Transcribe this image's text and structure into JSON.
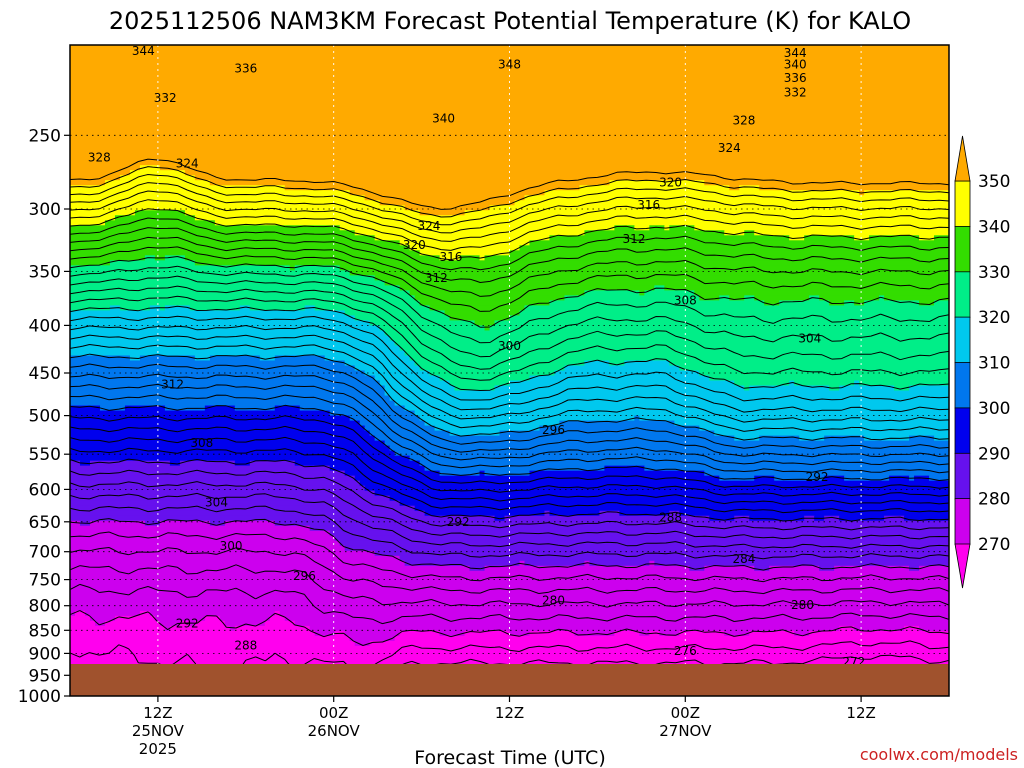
{
  "title": "2025112506 NAM3KM Forecast Potential Temperature (K) for KALO",
  "credit": "coolwx.com/models",
  "chart_data": {
    "type": "heatmap",
    "title": "2025112506 NAM3KM Forecast Potential Temperature (K) for KALO",
    "xlabel": "Forecast Time (UTC)",
    "ylabel": "",
    "x_range_hours": [
      0,
      60
    ],
    "y_scale": "log-pressure",
    "ylim": [
      1000,
      200
    ],
    "y_ticks": [
      250,
      300,
      350,
      400,
      450,
      500,
      550,
      600,
      650,
      700,
      750,
      800,
      850,
      900,
      950,
      1000
    ],
    "x_ticks": [
      {
        "hour": 6,
        "lines": [
          "12Z",
          "25NOV",
          "2025"
        ]
      },
      {
        "hour": 18,
        "lines": [
          "00Z",
          "26NOV"
        ]
      },
      {
        "hour": 30,
        "lines": [
          "12Z"
        ]
      },
      {
        "hour": 42,
        "lines": [
          "00Z",
          "27NOV"
        ]
      },
      {
        "hour": 54,
        "lines": [
          "12Z"
        ]
      }
    ],
    "grid": true,
    "contour_interval": 2,
    "contour_labels": [
      {
        "value": 344,
        "hour": 5,
        "p": 203
      },
      {
        "value": 336,
        "hour": 12,
        "p": 212
      },
      {
        "value": 332,
        "hour": 6.5,
        "p": 228
      },
      {
        "value": 328,
        "hour": 2,
        "p": 264
      },
      {
        "value": 324,
        "hour": 8,
        "p": 268
      },
      {
        "value": 340,
        "hour": 25.5,
        "p": 240
      },
      {
        "value": 348,
        "hour": 30,
        "p": 210
      },
      {
        "value": 344,
        "hour": 49.5,
        "p": 204
      },
      {
        "value": 340,
        "hour": 49.5,
        "p": 210
      },
      {
        "value": 336,
        "hour": 49.5,
        "p": 217
      },
      {
        "value": 332,
        "hour": 49.5,
        "p": 225
      },
      {
        "value": 328,
        "hour": 46,
        "p": 241
      },
      {
        "value": 324,
        "hour": 45,
        "p": 258
      },
      {
        "value": 320,
        "hour": 41,
        "p": 281
      },
      {
        "value": 316,
        "hour": 39.5,
        "p": 297
      },
      {
        "value": 312,
        "hour": 38.5,
        "p": 323
      },
      {
        "value": 324,
        "hour": 24.5,
        "p": 313
      },
      {
        "value": 320,
        "hour": 23.5,
        "p": 328
      },
      {
        "value": 316,
        "hour": 26,
        "p": 338
      },
      {
        "value": 312,
        "hour": 25,
        "p": 356
      },
      {
        "value": 308,
        "hour": 42,
        "p": 376
      },
      {
        "value": 304,
        "hour": 50.5,
        "p": 413
      },
      {
        "value": 300,
        "hour": 30,
        "p": 421
      },
      {
        "value": 296,
        "hour": 33,
        "p": 518
      },
      {
        "value": 292,
        "hour": 51,
        "p": 582
      },
      {
        "value": 288,
        "hour": 41,
        "p": 643
      },
      {
        "value": 284,
        "hour": 46,
        "p": 713
      },
      {
        "value": 280,
        "hour": 50,
        "p": 799
      },
      {
        "value": 280,
        "hour": 33,
        "p": 790
      },
      {
        "value": 276,
        "hour": 42,
        "p": 895
      },
      {
        "value": 272,
        "hour": 53.5,
        "p": 919
      },
      {
        "value": 312,
        "hour": 7,
        "p": 463
      },
      {
        "value": 308,
        "hour": 9,
        "p": 535
      },
      {
        "value": 304,
        "hour": 10,
        "p": 620
      },
      {
        "value": 300,
        "hour": 11,
        "p": 690
      },
      {
        "value": 296,
        "hour": 16,
        "p": 743
      },
      {
        "value": 292,
        "hour": 8,
        "p": 836
      },
      {
        "value": 288,
        "hour": 12,
        "p": 883
      },
      {
        "value": 292,
        "hour": 26.5,
        "p": 650
      }
    ],
    "colorbar": {
      "labels": [
        350,
        340,
        330,
        320,
        310,
        300,
        290,
        280,
        270
      ],
      "bands": [
        {
          "from": 340,
          "to": 350,
          "color": "#ffff00"
        },
        {
          "from": 330,
          "to": 340,
          "color": "#33dd00"
        },
        {
          "from": 320,
          "to": 330,
          "color": "#00ee88"
        },
        {
          "from": 310,
          "to": 320,
          "color": "#00c8ee"
        },
        {
          "from": 300,
          "to": 310,
          "color": "#0077ee"
        },
        {
          "from": 290,
          "to": 300,
          "color": "#0000ee"
        },
        {
          "from": 280,
          "to": 290,
          "color": "#6611ee"
        },
        {
          "from": 270,
          "to": 280,
          "color": "#cc00ee"
        }
      ],
      "above_color": "#ffaa00",
      "below_color": "#ff00ee"
    },
    "colors": {
      "ground": "#a0522d",
      "extra_top": "#ffaa00",
      "extra_bottom": "#ff00ee"
    }
  }
}
